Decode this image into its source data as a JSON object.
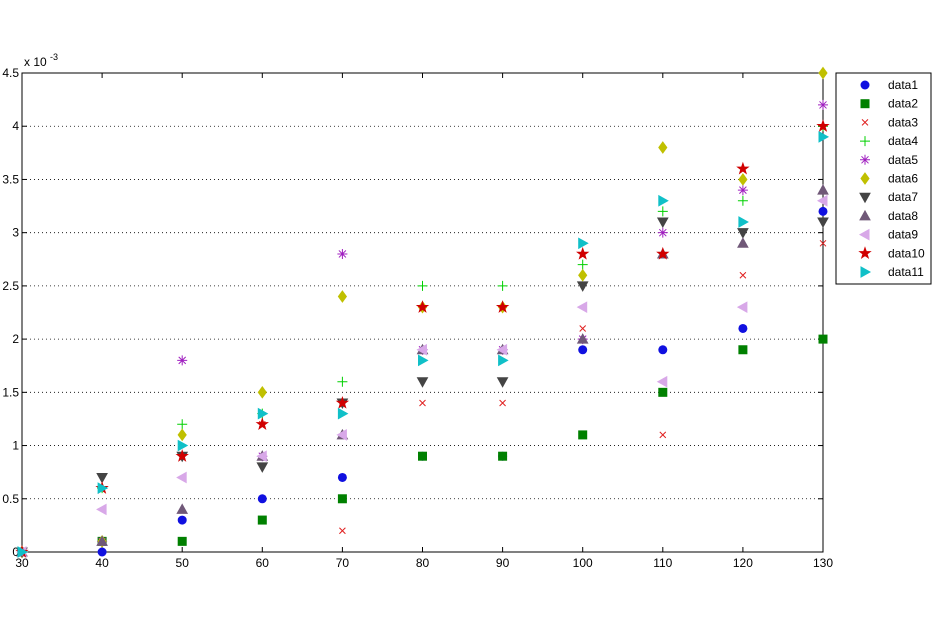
{
  "chart_data": {
    "type": "scatter",
    "y_multiplier": {
      "base": "x 10",
      "exponent": "-3"
    },
    "x": [
      30,
      40,
      50,
      60,
      70,
      80,
      90,
      100,
      110,
      120,
      130
    ],
    "xlim": [
      30,
      130
    ],
    "xticks": [
      30,
      40,
      50,
      60,
      70,
      80,
      90,
      100,
      110,
      120,
      130
    ],
    "ylim": [
      0,
      4.5
    ],
    "yticks": [
      0,
      0.5,
      1,
      1.5,
      2,
      2.5,
      3,
      3.5,
      4,
      4.5
    ],
    "grid": true,
    "legend": "outside-right",
    "series": [
      {
        "name": "data1",
        "color": "#1010e0",
        "marker": "circle",
        "values": [
          0,
          0,
          0.3,
          0.5,
          0.7,
          0.9,
          0.9,
          1.9,
          1.9,
          2.1,
          3.2
        ]
      },
      {
        "name": "data2",
        "color": "#008000",
        "marker": "square",
        "values": [
          0,
          0.1,
          0.1,
          0.3,
          0.5,
          0.9,
          0.9,
          1.1,
          1.5,
          1.9,
          2.0
        ]
      },
      {
        "name": "data3",
        "color": "#e02020",
        "marker": "x",
        "values": [
          0,
          0.1,
          0.9,
          1.2,
          0.2,
          1.4,
          1.4,
          2.1,
          1.1,
          2.6,
          2.9
        ]
      },
      {
        "name": "data4",
        "color": "#00d000",
        "marker": "plus",
        "values": [
          0,
          0.6,
          1.2,
          1.3,
          1.6,
          2.5,
          2.5,
          2.7,
          3.2,
          3.3,
          4.0
        ]
      },
      {
        "name": "data5",
        "color": "#a020c0",
        "marker": "star",
        "values": [
          0,
          0.1,
          1.8,
          0.9,
          2.8,
          1.9,
          1.9,
          2.0,
          3.0,
          3.4,
          4.2
        ]
      },
      {
        "name": "data6",
        "color": "#c0c000",
        "marker": "diamond",
        "values": [
          0,
          0.1,
          1.1,
          1.5,
          2.4,
          2.3,
          2.3,
          2.6,
          3.8,
          3.5,
          4.5
        ]
      },
      {
        "name": "data7",
        "color": "#444444",
        "marker": "tri-down",
        "values": [
          0,
          0.7,
          0.9,
          0.8,
          1.4,
          1.6,
          1.6,
          2.5,
          3.1,
          3.0,
          3.1
        ]
      },
      {
        "name": "data8",
        "color": "#705878",
        "marker": "tri-up",
        "values": [
          0,
          0.1,
          0.4,
          0.9,
          1.1,
          1.9,
          1.9,
          2.0,
          2.8,
          2.9,
          3.4
        ]
      },
      {
        "name": "data9",
        "color": "#d8a8e8",
        "marker": "tri-left",
        "values": [
          0,
          0.4,
          0.7,
          0.9,
          1.1,
          1.9,
          1.9,
          2.3,
          1.6,
          2.3,
          3.3
        ]
      },
      {
        "name": "data10",
        "color": "#d00000",
        "marker": "pentagram",
        "values": [
          0,
          0.6,
          0.9,
          1.2,
          1.4,
          2.3,
          2.3,
          2.8,
          2.8,
          3.6,
          4.0
        ]
      },
      {
        "name": "data11",
        "color": "#10c0c8",
        "marker": "tri-right",
        "values": [
          0,
          0.6,
          1.0,
          1.3,
          1.3,
          1.8,
          1.8,
          2.9,
          3.3,
          3.1,
          3.9
        ]
      }
    ]
  }
}
